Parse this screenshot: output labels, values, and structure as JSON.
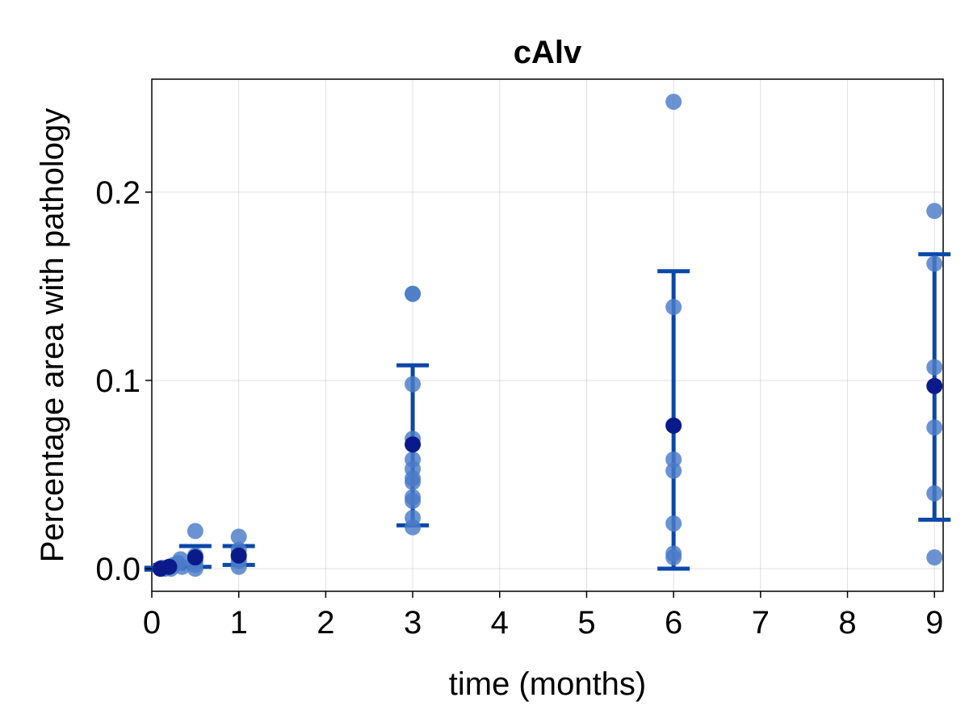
{
  "chart_data": {
    "type": "scatter",
    "title": "cAlv",
    "xlabel": "time (months)",
    "ylabel": "Percentage area with pathology",
    "xlim": [
      0,
      9.1
    ],
    "ylim": [
      -0.012,
      0.26
    ],
    "xticks": [
      0,
      1,
      2,
      3,
      4,
      5,
      6,
      7,
      8,
      9
    ],
    "yticks": [
      0.0,
      0.1,
      0.2
    ],
    "ytick_labels": [
      "0.0",
      "0.1",
      "0.2"
    ],
    "grid": true,
    "colors": {
      "points": "#4a7bc8",
      "mean": "#0a1a8a",
      "errorbar": "#0a47a8"
    },
    "points": [
      {
        "x": 0.1,
        "y": 0.0
      },
      {
        "x": 0.12,
        "y": 0.0005
      },
      {
        "x": 0.15,
        "y": 0.0
      },
      {
        "x": 0.2,
        "y": 0.001
      },
      {
        "x": 0.22,
        "y": 0.0
      },
      {
        "x": 0.25,
        "y": 0.002
      },
      {
        "x": 0.3,
        "y": 0.003
      },
      {
        "x": 0.33,
        "y": 0.005
      },
      {
        "x": 0.35,
        "y": 0.001
      },
      {
        "x": 0.5,
        "y": 0.02
      },
      {
        "x": 0.5,
        "y": 0.007
      },
      {
        "x": 0.5,
        "y": 0.004
      },
      {
        "x": 0.5,
        "y": 0.002
      },
      {
        "x": 0.5,
        "y": 0.0
      },
      {
        "x": 1,
        "y": 0.017
      },
      {
        "x": 1,
        "y": 0.01
      },
      {
        "x": 1,
        "y": 0.006
      },
      {
        "x": 1,
        "y": 0.004
      },
      {
        "x": 1,
        "y": 0.001
      },
      {
        "x": 3,
        "y": 0.146
      },
      {
        "x": 3,
        "y": 0.146
      },
      {
        "x": 3,
        "y": 0.098
      },
      {
        "x": 3,
        "y": 0.069
      },
      {
        "x": 3,
        "y": 0.058
      },
      {
        "x": 3,
        "y": 0.053
      },
      {
        "x": 3,
        "y": 0.048
      },
      {
        "x": 3,
        "y": 0.046
      },
      {
        "x": 3,
        "y": 0.038
      },
      {
        "x": 3,
        "y": 0.036
      },
      {
        "x": 3,
        "y": 0.027
      },
      {
        "x": 3,
        "y": 0.022
      },
      {
        "x": 6,
        "y": 0.248
      },
      {
        "x": 6,
        "y": 0.139
      },
      {
        "x": 6,
        "y": 0.058
      },
      {
        "x": 6,
        "y": 0.052
      },
      {
        "x": 6,
        "y": 0.024
      },
      {
        "x": 6,
        "y": 0.008
      },
      {
        "x": 6,
        "y": 0.006
      },
      {
        "x": 9,
        "y": 0.19
      },
      {
        "x": 9,
        "y": 0.162
      },
      {
        "x": 9,
        "y": 0.107
      },
      {
        "x": 9,
        "y": 0.075
      },
      {
        "x": 9,
        "y": 0.04
      },
      {
        "x": 9,
        "y": 0.006
      }
    ],
    "means": [
      {
        "x": 0.1,
        "y": 0.0,
        "low": -0.0005,
        "high": 0.0005
      },
      {
        "x": 0.2,
        "y": 0.001,
        "low": 0.0,
        "high": 0.002
      },
      {
        "x": 0.5,
        "y": 0.006,
        "low": 0.001,
        "high": 0.012
      },
      {
        "x": 1,
        "y": 0.007,
        "low": 0.002,
        "high": 0.012
      },
      {
        "x": 3,
        "y": 0.066,
        "low": 0.023,
        "high": 0.108
      },
      {
        "x": 6,
        "y": 0.076,
        "low": 0.0,
        "high": 0.158
      },
      {
        "x": 9,
        "y": 0.097,
        "low": 0.026,
        "high": 0.167
      }
    ]
  }
}
